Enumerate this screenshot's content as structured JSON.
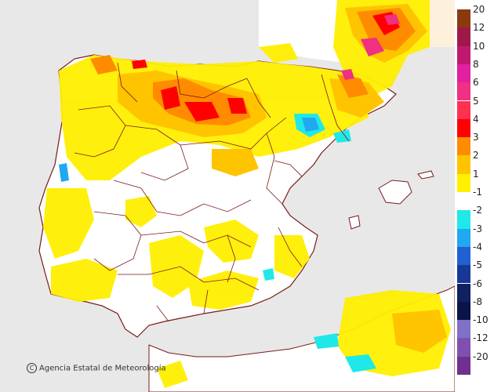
{
  "credit": "Agencia Estatal de Meteorología",
  "colors": {
    "sea": "#e8e8e8",
    "land": "#ffffff",
    "border": "#7a1a1a",
    "outside_frame": "#fdf1dc"
  },
  "legend": [
    {
      "label": "20",
      "color": "#8b3a0f"
    },
    {
      "label": "12",
      "color": "#a01848"
    },
    {
      "label": "10",
      "color": "#c01870"
    },
    {
      "label": "8",
      "color": "#e020a0"
    },
    {
      "label": "6",
      "color": "#f03080"
    },
    {
      "label": "5",
      "color": "#ff3050"
    },
    {
      "label": "4",
      "color": "#ff0000"
    },
    {
      "label": "3",
      "color": "#ff8c00"
    },
    {
      "label": "2",
      "color": "#ffc400"
    },
    {
      "label": "1",
      "color": "#ffef00"
    },
    {
      "label": "-1",
      "color": "#ffffff"
    },
    {
      "label": "-2",
      "color": "#20e8e8"
    },
    {
      "label": "-3",
      "color": "#20a8f0"
    },
    {
      "label": "-4",
      "color": "#2060d0"
    },
    {
      "label": "-5",
      "color": "#183898"
    },
    {
      "label": "-6",
      "color": "#102060"
    },
    {
      "label": "-8",
      "color": "#0a1448"
    },
    {
      "label": "-10",
      "color": "#8070c8"
    },
    {
      "label": "-12",
      "color": "#8050b0"
    },
    {
      "label": "-20",
      "color": "#703090"
    }
  ]
}
